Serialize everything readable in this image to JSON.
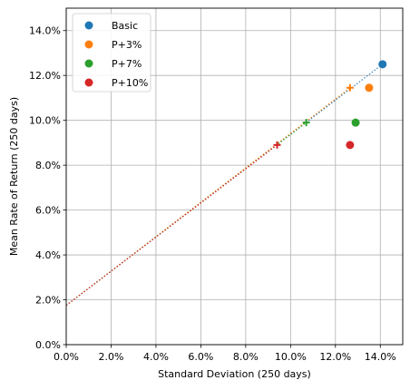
{
  "chart_data": {
    "type": "scatter",
    "xlabel": "Standard Deviation (250 days)",
    "ylabel": "Mean Rate of Return (250 days)",
    "xlim": [
      0,
      0.15
    ],
    "ylim": [
      0,
      0.15
    ],
    "x_ticks": [
      "0.0%",
      "2.0%",
      "4.0%",
      "6.0%",
      "8.0%",
      "10.0%",
      "12.0%",
      "14.0%"
    ],
    "y_ticks": [
      "0.0%",
      "2.0%",
      "4.0%",
      "6.0%",
      "8.0%",
      "10.0%",
      "12.0%",
      "14.0%"
    ],
    "grid": true,
    "legend_position": "top-left",
    "risk_free_rate": 0.0175,
    "series": [
      {
        "name": "Basic",
        "color": "#1f77b4",
        "circle": [
          0.141,
          0.125
        ],
        "plus": null
      },
      {
        "name": "P+3%",
        "color": "#ff7f0e",
        "circle": [
          0.135,
          0.1145
        ],
        "plus": [
          0.1265,
          0.1145
        ]
      },
      {
        "name": "P+7%",
        "color": "#2ca02c",
        "circle": [
          0.129,
          0.099
        ],
        "plus": [
          0.107,
          0.099
        ]
      },
      {
        "name": "P+10%",
        "color": "#d62728",
        "circle": [
          0.1265,
          0.089
        ],
        "plus": [
          0.094,
          0.089
        ]
      }
    ]
  }
}
